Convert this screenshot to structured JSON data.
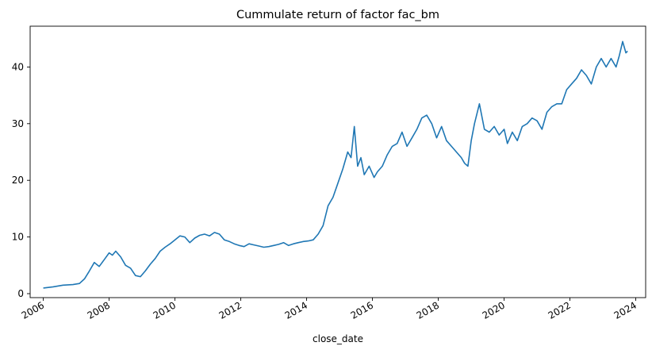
{
  "chart_data": {
    "type": "line",
    "title": "Cummulate return of factor fac_bm",
    "xlabel": "close_date",
    "ylabel": "",
    "x_type": "year",
    "xlim": [
      2005.6,
      2024.3
    ],
    "ylim": [
      -0.7,
      47.2
    ],
    "x_ticks": [
      "2006",
      "2008",
      "2010",
      "2012",
      "2014",
      "2016",
      "2018",
      "2020",
      "2022",
      "2024"
    ],
    "y_ticks": [
      "0",
      "10",
      "20",
      "30",
      "40"
    ],
    "grid": false,
    "legend": "none",
    "line_color": "#1f77b4",
    "series": [
      {
        "x": [
          2006.0,
          2006.3,
          2006.6,
          2006.9,
          2007.1,
          2007.25,
          2007.4,
          2007.55,
          2007.7,
          2007.85,
          2008.0,
          2008.1,
          2008.2,
          2008.35,
          2008.5,
          2008.65,
          2008.8,
          2008.95,
          2009.1,
          2009.25,
          2009.4,
          2009.55,
          2009.7,
          2009.85,
          2010.0,
          2010.15,
          2010.3,
          2010.45,
          2010.6,
          2010.75,
          2010.9,
          2011.05,
          2011.2,
          2011.35,
          2011.5,
          2011.65,
          2011.8,
          2011.95,
          2012.1,
          2012.25,
          2012.4,
          2012.55,
          2012.7,
          2012.85,
          2013.0,
          2013.15,
          2013.3,
          2013.45,
          2013.6,
          2013.75,
          2013.9,
          2014.05,
          2014.2,
          2014.35,
          2014.5,
          2014.65,
          2014.8,
          2014.95,
          2015.1,
          2015.25,
          2015.35,
          2015.45,
          2015.55,
          2015.65,
          2015.75,
          2015.9,
          2016.05,
          2016.15,
          2016.3,
          2016.45,
          2016.6,
          2016.75,
          2016.9,
          2017.05,
          2017.2,
          2017.35,
          2017.5,
          2017.65,
          2017.8,
          2017.95,
          2018.1,
          2018.25,
          2018.4,
          2018.55,
          2018.7,
          2018.8,
          2018.9,
          2019.0,
          2019.1,
          2019.25,
          2019.4,
          2019.55,
          2019.7,
          2019.85,
          2020.0,
          2020.1,
          2020.25,
          2020.4,
          2020.55,
          2020.7,
          2020.85,
          2021.0,
          2021.15,
          2021.3,
          2021.45,
          2021.6,
          2021.75,
          2021.9,
          2022.05,
          2022.2,
          2022.35,
          2022.5,
          2022.65,
          2022.8,
          2022.95,
          2023.1,
          2023.25,
          2023.4,
          2023.5,
          2023.6,
          2023.7,
          2023.75
        ],
        "y": [
          1.0,
          1.2,
          1.5,
          1.6,
          1.8,
          2.6,
          4.0,
          5.5,
          4.8,
          6.0,
          7.2,
          6.8,
          7.5,
          6.5,
          5.0,
          4.5,
          3.2,
          3.0,
          4.0,
          5.2,
          6.2,
          7.5,
          8.2,
          8.8,
          9.5,
          10.2,
          10.0,
          9.0,
          9.8,
          10.3,
          10.5,
          10.2,
          10.8,
          10.5,
          9.5,
          9.2,
          8.8,
          8.5,
          8.3,
          8.8,
          8.6,
          8.4,
          8.2,
          8.3,
          8.5,
          8.7,
          9.0,
          8.5,
          8.8,
          9.0,
          9.2,
          9.3,
          9.5,
          10.5,
          12.0,
          15.5,
          17.0,
          19.5,
          22.0,
          25.0,
          24.0,
          29.5,
          22.5,
          24.0,
          21.0,
          22.5,
          20.5,
          21.5,
          22.5,
          24.5,
          26.0,
          26.5,
          28.5,
          26.0,
          27.5,
          29.0,
          31.0,
          31.5,
          30.0,
          27.5,
          29.5,
          27.0,
          26.0,
          25.0,
          24.0,
          23.0,
          22.5,
          27.0,
          30.0,
          33.5,
          29.0,
          28.5,
          29.5,
          28.0,
          29.0,
          26.5,
          28.5,
          27.0,
          29.5,
          30.0,
          31.0,
          30.5,
          29.0,
          32.0,
          33.0,
          33.5,
          33.5,
          36.0,
          37.0,
          38.0,
          39.5,
          38.5,
          37.0,
          40.0,
          41.5,
          40.0,
          41.5,
          40.0,
          42.0,
          44.5,
          42.5,
          42.8
        ]
      }
    ]
  }
}
